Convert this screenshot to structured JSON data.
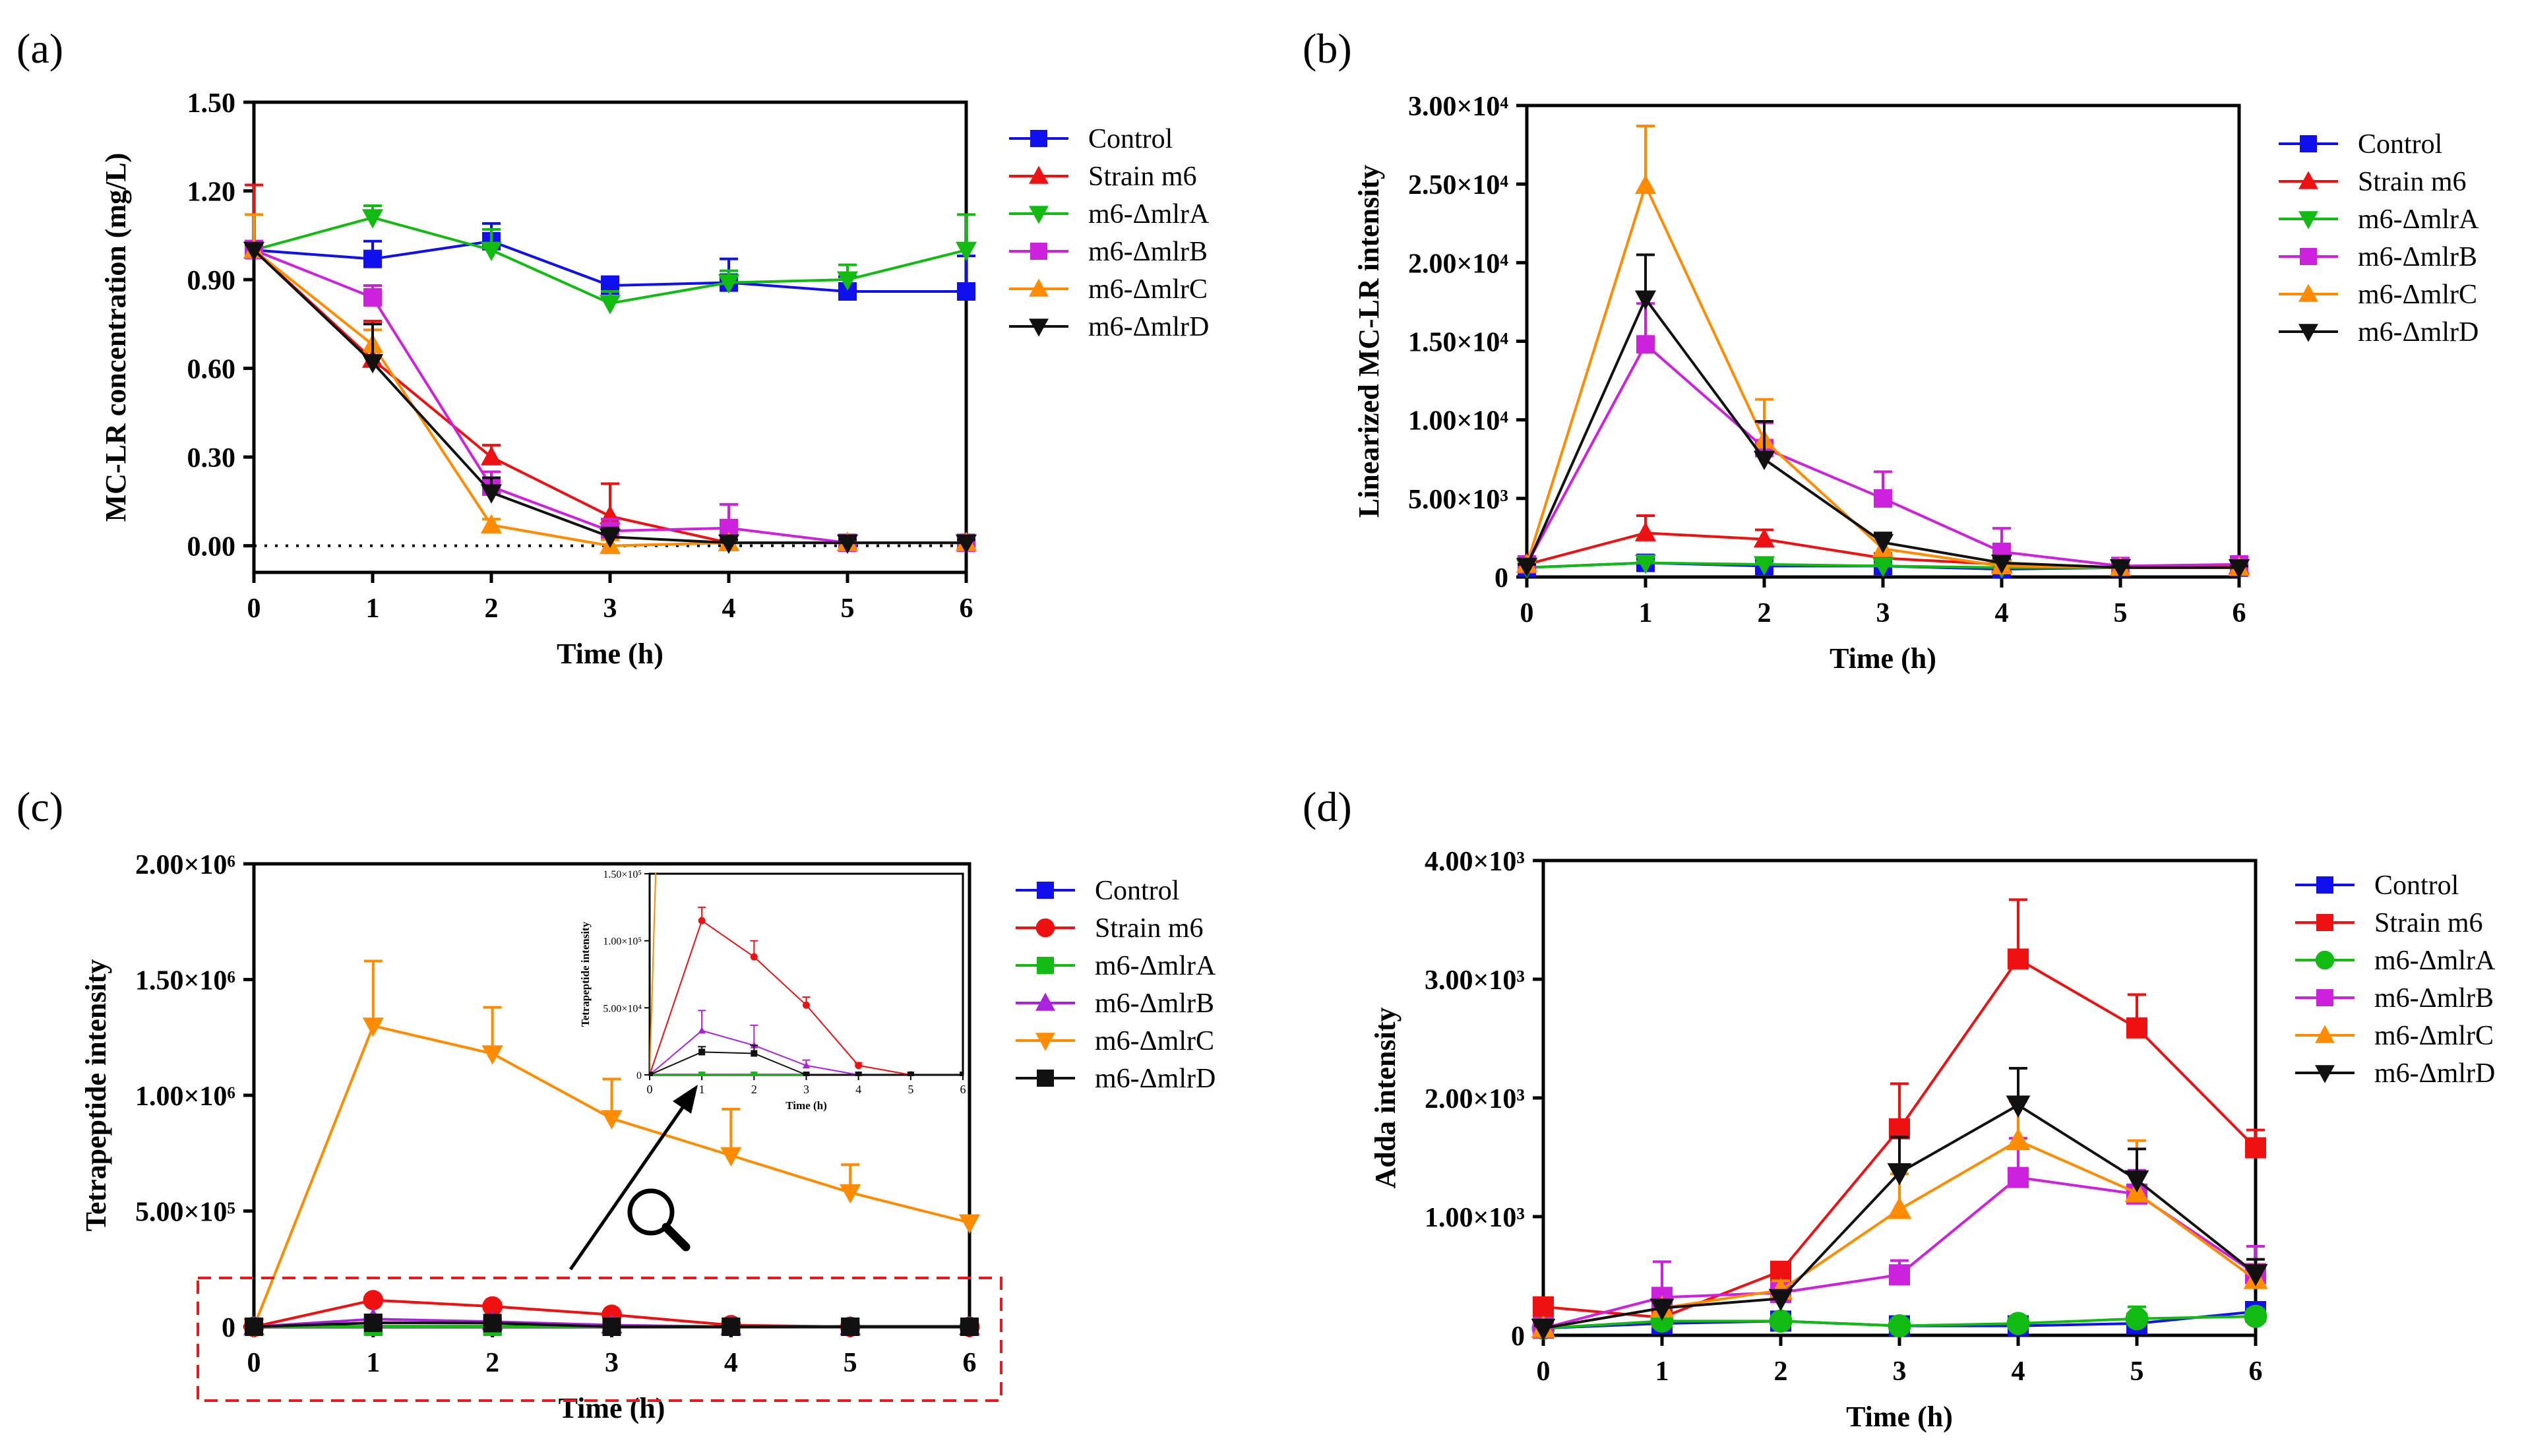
{
  "chart_data": [
    {
      "panel": "(a)",
      "type": "line",
      "xlabel": "Time (h)",
      "ylabel": "MC-LR concentration (mg/L)",
      "xlim": [
        0,
        6
      ],
      "ylim": [
        -0.09,
        1.5
      ],
      "x": [
        0,
        1,
        2,
        3,
        4,
        5,
        6
      ],
      "yticks": [
        0,
        0.3,
        0.6,
        0.9,
        1.2,
        1.5
      ],
      "ytick_labels": [
        "0.00",
        "0.30",
        "0.60",
        "0.90",
        "1.20",
        "1.50"
      ],
      "reference_line": {
        "y": 0,
        "style": "dotted"
      },
      "series": [
        {
          "name": "Control",
          "color": "#1010ee",
          "marker": "square",
          "values": [
            1.0,
            0.97,
            1.03,
            0.88,
            0.89,
            0.86,
            0.86
          ],
          "errors": [
            0.03,
            0.06,
            0.06,
            0.03,
            0.08,
            0.05,
            0.12
          ]
        },
        {
          "name": "Strain m6",
          "color": "#ee1111",
          "marker": "triangle-up",
          "values": [
            1.0,
            0.63,
            0.3,
            0.1,
            0.01,
            0.01,
            0.01
          ],
          "errors": [
            0.22,
            0.13,
            0.04,
            0.11,
            0.01,
            0.01,
            0.01
          ]
        },
        {
          "name": "m6-ΔmlrA",
          "color": "#11bb11",
          "marker": "triangle-down",
          "values": [
            1.0,
            1.11,
            1.0,
            0.82,
            0.89,
            0.9,
            1.0
          ],
          "errors": [
            0.02,
            0.04,
            0.07,
            0.04,
            0.04,
            0.05,
            0.12
          ]
        },
        {
          "name": "m6-ΔmlrB",
          "color": "#cc22dd",
          "marker": "square",
          "values": [
            1.0,
            0.84,
            0.2,
            0.05,
            0.06,
            0.01,
            0.01
          ],
          "errors": [
            0.03,
            0.04,
            0.05,
            0.04,
            0.08,
            0.01,
            0.01
          ]
        },
        {
          "name": "m6-ΔmlrC",
          "color": "#ff8c00",
          "marker": "triangle-up",
          "values": [
            1.0,
            0.68,
            0.07,
            0.0,
            0.01,
            0.01,
            0.01
          ],
          "errors": [
            0.12,
            0.05,
            0.02,
            0.02,
            0.01,
            0.01,
            0.01
          ]
        },
        {
          "name": "m6-ΔmlrD",
          "color": "#111111",
          "marker": "triangle-down",
          "values": [
            1.0,
            0.62,
            0.18,
            0.03,
            0.01,
            0.01,
            0.01
          ],
          "errors": [
            0.02,
            0.13,
            0.05,
            0.03,
            0.01,
            0.01,
            0.01
          ]
        }
      ]
    },
    {
      "panel": "(b)",
      "type": "line",
      "xlabel": "Time (h)",
      "ylabel": "Linearized MC-LR intensity",
      "xlim": [
        0,
        6
      ],
      "ylim": [
        0,
        30000
      ],
      "x": [
        0,
        1,
        2,
        3,
        4,
        5,
        6
      ],
      "yticks": [
        0,
        5000,
        10000,
        15000,
        20000,
        25000,
        30000
      ],
      "ytick_labels": [
        "0",
        "5.00×10³",
        "1.00×10⁴",
        "1.50×10⁴",
        "2.00×10⁴",
        "2.50×10⁴",
        "3.00×10⁴"
      ],
      "series": [
        {
          "name": "Control",
          "color": "#1010ee",
          "marker": "square",
          "values": [
            600,
            900,
            700,
            700,
            500,
            600,
            600
          ],
          "errors": [
            100,
            100,
            100,
            100,
            100,
            100,
            100
          ]
        },
        {
          "name": "Strain m6",
          "color": "#ee1111",
          "marker": "triangle-up",
          "values": [
            800,
            2800,
            2400,
            1200,
            800,
            600,
            700
          ],
          "errors": [
            100,
            1100,
            600,
            300,
            200,
            100,
            100
          ]
        },
        {
          "name": "m6-ΔmlrA",
          "color": "#11bb11",
          "marker": "triangle-down",
          "values": [
            600,
            900,
            800,
            700,
            600,
            600,
            600
          ],
          "errors": [
            100,
            100,
            100,
            100,
            100,
            100,
            100
          ]
        },
        {
          "name": "m6-ΔmlrB",
          "color": "#cc22dd",
          "marker": "square",
          "values": [
            800,
            14800,
            8200,
            5000,
            1600,
            700,
            800
          ],
          "errors": [
            100,
            2600,
            1600,
            1700,
            1500,
            100,
            100
          ]
        },
        {
          "name": "m6-ΔmlrC",
          "color": "#ff8c00",
          "marker": "triangle-up",
          "values": [
            800,
            24900,
            8700,
            1800,
            700,
            600,
            600
          ],
          "errors": [
            100,
            3800,
            2600,
            800,
            300,
            100,
            100
          ]
        },
        {
          "name": "m6-ΔmlrD",
          "color": "#111111",
          "marker": "triangle-down",
          "values": [
            700,
            17700,
            7500,
            2200,
            900,
            600,
            600
          ],
          "errors": [
            100,
            2800,
            2400,
            600,
            300,
            100,
            100
          ]
        }
      ]
    },
    {
      "panel": "(c)",
      "type": "line",
      "xlabel": "Time (h)",
      "ylabel": "Tetrapeptide intensity",
      "xlim": [
        0,
        6
      ],
      "ylim": [
        0,
        2000000
      ],
      "x": [
        0,
        1,
        2,
        3,
        4,
        5,
        6
      ],
      "yticks": [
        0,
        500000,
        1000000,
        1500000,
        2000000
      ],
      "ytick_labels": [
        "0",
        "5.00×10⁵",
        "1.00×10⁶",
        "1.50×10⁶",
        "2.00×10⁶"
      ],
      "series": [
        {
          "name": "Control",
          "color": "#1010ee",
          "marker": "square",
          "values": [
            0,
            0,
            0,
            0,
            0,
            0,
            0
          ],
          "errors": [
            0,
            0,
            0,
            0,
            0,
            0,
            0
          ]
        },
        {
          "name": "Strain m6",
          "color": "#ee1111",
          "marker": "circle",
          "values": [
            0,
            115000,
            88000,
            52000,
            7000,
            0,
            0
          ],
          "errors": [
            0,
            10000,
            12000,
            6000,
            2000,
            0,
            0
          ]
        },
        {
          "name": "m6-ΔmlrA",
          "color": "#11bb11",
          "marker": "square",
          "values": [
            0,
            0,
            0,
            0,
            0,
            0,
            0
          ],
          "errors": [
            0,
            0,
            0,
            0,
            0,
            0,
            0
          ]
        },
        {
          "name": "m6-ΔmlrB",
          "color": "#aa22dd",
          "marker": "triangle-up",
          "values": [
            0,
            33000,
            22000,
            7000,
            0,
            0,
            0
          ],
          "errors": [
            0,
            15000,
            15000,
            4000,
            0,
            0,
            0
          ]
        },
        {
          "name": "m6-ΔmlrC",
          "color": "#ff8c00",
          "marker": "triangle-down",
          "values": [
            0,
            1300000,
            1180000,
            900000,
            740000,
            580000,
            450000
          ],
          "errors": [
            0,
            280000,
            200000,
            170000,
            200000,
            120000,
            30000
          ]
        },
        {
          "name": "m6-ΔmlrD",
          "color": "#111111",
          "marker": "square",
          "values": [
            0,
            17000,
            16000,
            0,
            0,
            0,
            0
          ],
          "errors": [
            0,
            4000,
            6000,
            0,
            0,
            0,
            0
          ]
        }
      ],
      "inset": {
        "ylabel": "Tetrapeptide intensity",
        "xlabel": "Time (h)",
        "ylim": [
          0,
          150000
        ],
        "yticks": [
          0,
          50000,
          100000,
          150000
        ],
        "ytick_labels": [
          "0",
          "5.00×10⁴",
          "1.00×10⁵",
          "1.50×10⁵"
        ],
        "series_names": [
          "Control",
          "Strain m6",
          "m6-ΔmlrA",
          "m6-ΔmlrB",
          "m6-ΔmlrC",
          "m6-ΔmlrD"
        ]
      }
    },
    {
      "panel": "(d)",
      "type": "line",
      "xlabel": "Time (h)",
      "ylabel": "Adda intensity",
      "xlim": [
        0,
        6
      ],
      "ylim": [
        0,
        4000
      ],
      "x": [
        0,
        1,
        2,
        3,
        4,
        5,
        6
      ],
      "yticks": [
        0,
        1000,
        2000,
        3000,
        4000
      ],
      "ytick_labels": [
        "0",
        "1.00×10³",
        "2.00×10³",
        "3.00×10³",
        "4.00×10³"
      ],
      "series": [
        {
          "name": "Control",
          "color": "#1010ee",
          "marker": "square",
          "values": [
            60,
            100,
            120,
            80,
            80,
            100,
            200
          ],
          "errors": [
            20,
            30,
            30,
            20,
            20,
            30,
            40
          ]
        },
        {
          "name": "Strain m6",
          "color": "#ee1111",
          "marker": "square",
          "values": [
            240,
            150,
            540,
            1740,
            3170,
            2590,
            1580
          ],
          "errors": [
            30,
            60,
            60,
            380,
            500,
            280,
            150
          ]
        },
        {
          "name": "m6-ΔmlrA",
          "color": "#11bb11",
          "marker": "circle",
          "values": [
            60,
            120,
            120,
            80,
            100,
            140,
            160
          ],
          "errors": [
            20,
            30,
            30,
            20,
            30,
            100,
            60
          ]
        },
        {
          "name": "m6-ΔmlrB",
          "color": "#cc22dd",
          "marker": "square",
          "values": [
            60,
            320,
            360,
            510,
            1330,
            1190,
            520
          ],
          "errors": [
            20,
            300,
            60,
            120,
            330,
            200,
            230
          ]
        },
        {
          "name": "m6-ΔmlrC",
          "color": "#ff8c00",
          "marker": "triangle-up",
          "values": [
            60,
            230,
            380,
            1060,
            1640,
            1200,
            470
          ],
          "errors": [
            20,
            60,
            80,
            300,
            330,
            440,
            120
          ]
        },
        {
          "name": "m6-ΔmlrD",
          "color": "#111111",
          "marker": "triangle-down",
          "values": [
            60,
            230,
            310,
            1370,
            1940,
            1310,
            520
          ],
          "errors": [
            20,
            60,
            60,
            300,
            310,
            260,
            120
          ]
        }
      ]
    }
  ]
}
